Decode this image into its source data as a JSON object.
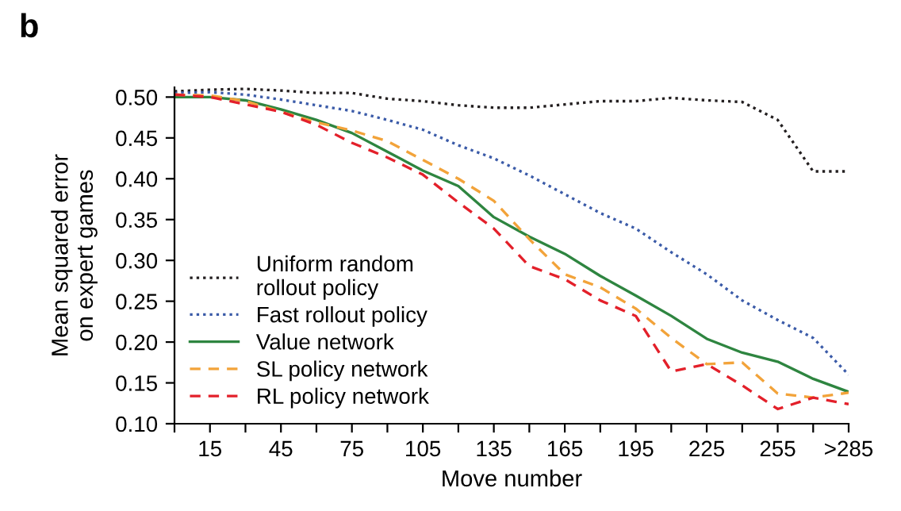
{
  "chart_data": {
    "type": "line",
    "title": "b",
    "xlabel": "Move number",
    "ylabel": "Mean squared error\non expert games",
    "x": [
      0,
      15,
      30,
      45,
      60,
      75,
      90,
      105,
      120,
      135,
      150,
      165,
      180,
      195,
      210,
      225,
      240,
      255,
      270,
      285
    ],
    "series": [
      {
        "name": "Uniform random\nrollout policy",
        "color": "#231f20",
        "line_style": "dotted",
        "values": [
          0.507,
          0.509,
          0.51,
          0.508,
          0.505,
          0.505,
          0.498,
          0.495,
          0.49,
          0.487,
          0.487,
          0.491,
          0.495,
          0.495,
          0.499,
          0.496,
          0.494,
          0.472,
          0.409,
          0.409
        ]
      },
      {
        "name": "Fast rollout policy",
        "color": "#3b5ba8",
        "line_style": "dotted",
        "values": [
          0.505,
          0.506,
          0.503,
          0.497,
          0.49,
          0.483,
          0.472,
          0.46,
          0.441,
          0.425,
          0.404,
          0.381,
          0.358,
          0.339,
          0.31,
          0.283,
          0.251,
          0.227,
          0.205,
          0.16
        ]
      },
      {
        "name": "Value network",
        "color": "#2e8540",
        "line_style": "solid",
        "values": [
          0.5,
          0.5,
          0.496,
          0.485,
          0.472,
          0.456,
          0.433,
          0.41,
          0.391,
          0.353,
          0.329,
          0.308,
          0.281,
          0.257,
          0.232,
          0.204,
          0.187,
          0.176,
          0.155,
          0.139
        ]
      },
      {
        "name": "SL policy network",
        "color": "#f2a33a",
        "line_style": "dashed",
        "values": [
          0.503,
          0.502,
          0.495,
          0.482,
          0.469,
          0.459,
          0.446,
          0.423,
          0.4,
          0.373,
          0.326,
          0.283,
          0.267,
          0.241,
          0.205,
          0.173,
          0.175,
          0.137,
          0.132,
          0.138
        ]
      },
      {
        "name": "RL policy network",
        "color": "#e3202a",
        "line_style": "dashed",
        "values": [
          0.503,
          0.5,
          0.491,
          0.482,
          0.466,
          0.444,
          0.426,
          0.405,
          0.371,
          0.339,
          0.293,
          0.277,
          0.251,
          0.232,
          0.164,
          0.173,
          0.147,
          0.118,
          0.132,
          0.124
        ]
      }
    ],
    "xlim": [
      0,
      285
    ],
    "xticks": [
      {
        "value": 0,
        "label": null
      },
      15,
      {
        "value": 30,
        "label": null
      },
      45,
      {
        "value": 60,
        "label": null
      },
      75,
      {
        "value": 90,
        "label": null
      },
      105,
      {
        "value": 120,
        "label": null
      },
      135,
      {
        "value": 150,
        "label": null
      },
      165,
      {
        "value": 180,
        "label": null
      },
      195,
      {
        "value": 210,
        "label": null
      },
      225,
      {
        "value": 240,
        "label": null
      },
      255,
      {
        "value": 270,
        "label": null
      },
      {
        "value": 285,
        "label": ">285"
      }
    ],
    "ylim": [
      0.1,
      0.512
    ],
    "yticks": [
      {
        "value": 0.1,
        "label": "0.10"
      },
      {
        "value": 0.15,
        "label": "0.15"
      },
      {
        "value": 0.2,
        "label": "0.20"
      },
      {
        "value": 0.25,
        "label": "0.25"
      },
      {
        "value": 0.3,
        "label": "0.30"
      },
      {
        "value": 0.35,
        "label": "0.35"
      },
      {
        "value": 0.4,
        "label": "0.40"
      },
      {
        "value": 0.45,
        "label": "0.45"
      },
      {
        "value": 0.5,
        "label": "0.50"
      }
    ],
    "legend": "bottom left",
    "grid": false
  }
}
